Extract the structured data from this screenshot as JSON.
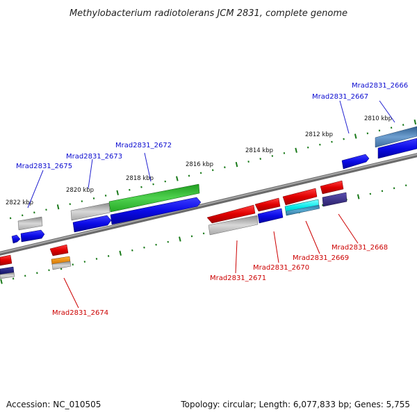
{
  "title": "Methylobacterium radiotolerans JCM 2831, complete genome",
  "footer": {
    "accession": "Accession: NC_010505",
    "summary": "Topology: circular; Length: 6,077,833 bp; Genes: 5,755"
  },
  "kbp_labels": [
    "2810 kbp",
    "2812 kbp",
    "2814 kbp",
    "2816 kbp",
    "2818 kbp",
    "2820 kbp",
    "2822 kbp"
  ],
  "gene_labels_top": [
    "Mrad2831_2666",
    "Mrad2831_2667",
    "Mrad2831_2672",
    "Mrad2831_2673",
    "Mrad2831_2675"
  ],
  "gene_labels_bottom": [
    "Mrad2831_2668",
    "Mrad2831_2669",
    "Mrad2831_2670",
    "Mrad2831_2671",
    "Mrad2831_2674"
  ],
  "colors": {
    "blue": "#0a0ae6",
    "steel_blue": "#4a7fb8",
    "navy": "#1a1a80",
    "green": "#33bb33",
    "red": "#e00000",
    "cyan": "#00e0e0",
    "indigo": "#3a2f8a",
    "orange": "#f09000",
    "gray": "#a0a0a0",
    "backbone": "#808080",
    "tick": "#1a7a1a"
  }
}
